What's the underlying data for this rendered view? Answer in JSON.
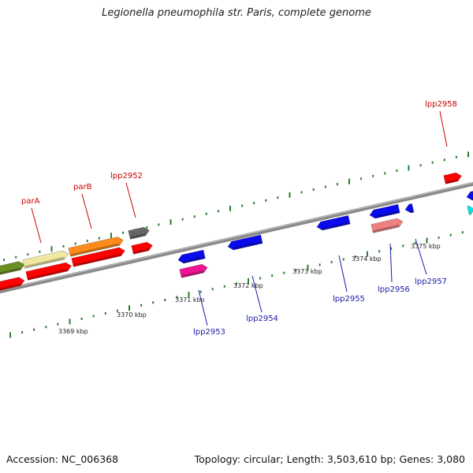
{
  "title": "Legionella pneumophila str. Paris, complete genome",
  "footer": {
    "accession": "Accession: NC_006368",
    "topology": "Topology: circular; Length: 3,503,610 bp; Genes: 3,080"
  },
  "colors": {
    "backbone": "#8a8a8a",
    "tick": "#2e7d2e",
    "forward_label": "#cc0000",
    "reverse_label": "#1a1aa6"
  },
  "scale_labels": [
    "3369 kbp",
    "3370 kbp",
    "3371 kbp",
    "3372 kbp",
    "3373 kbp",
    "3374 kbp",
    "3375 kbp"
  ],
  "forward_labels": [
    "parA",
    "parB",
    "lpp2952",
    "lpp2958"
  ],
  "reverse_labels": [
    "lpp2953",
    "lpp2954",
    "lpp2955",
    "lpp2956",
    "lpp2957"
  ],
  "gene_colors": {
    "olive": "#6b8e23",
    "khaki": "#eee8a0",
    "orange": "#ff8c1a",
    "gray": "#666666",
    "red": "#ff0000",
    "blue": "#0a0aee",
    "pink": "#ee1493",
    "salmon": "#f08080",
    "cyan": "#00e5ee"
  }
}
